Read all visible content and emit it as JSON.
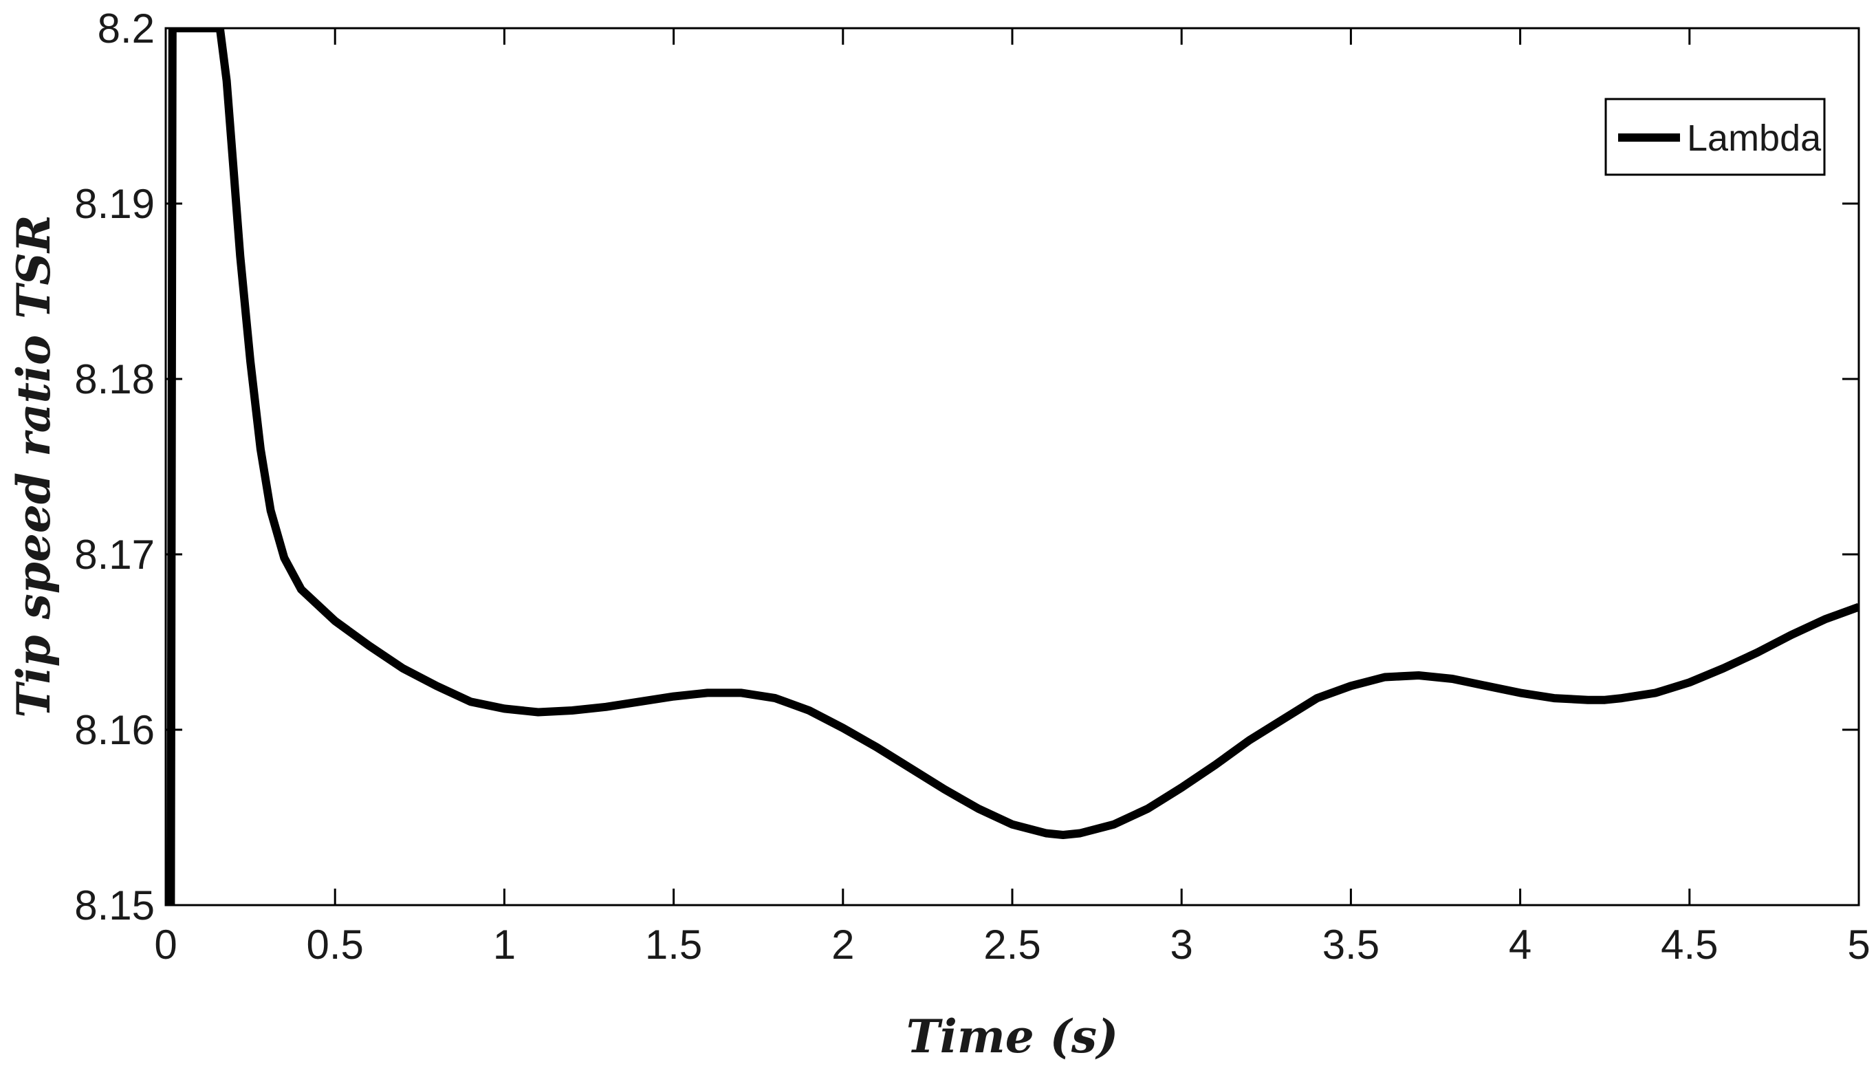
{
  "chart_data": {
    "type": "line",
    "xlabel": "Time (s)",
    "ylabel": "Tip speed ratio TSR",
    "xlim": [
      0,
      5
    ],
    "ylim": [
      8.15,
      8.2
    ],
    "xticks": [
      "0",
      "0.5",
      "1",
      "1.5",
      "2",
      "2.5",
      "3",
      "3.5",
      "4",
      "4.5",
      "5"
    ],
    "yticks": [
      "8.15",
      "8.16",
      "8.17",
      "8.18",
      "8.19",
      "8.2"
    ],
    "grid": false,
    "legend": {
      "placement": "top-right",
      "entries": [
        "Lambda"
      ]
    },
    "series": [
      {
        "name": "Lambda",
        "color": "#000000",
        "x": [
          0,
          0.015,
          0.02,
          0.16,
          0.18,
          0.2,
          0.22,
          0.25,
          0.28,
          0.31,
          0.35,
          0.4,
          0.5,
          0.6,
          0.7,
          0.8,
          0.9,
          1.0,
          1.1,
          1.2,
          1.3,
          1.4,
          1.5,
          1.6,
          1.7,
          1.8,
          1.9,
          2.0,
          2.1,
          2.2,
          2.3,
          2.4,
          2.5,
          2.6,
          2.65,
          2.7,
          2.8,
          2.9,
          3.0,
          3.1,
          3.2,
          3.3,
          3.4,
          3.5,
          3.6,
          3.7,
          3.8,
          3.9,
          4.0,
          4.1,
          4.2,
          4.25,
          4.3,
          4.4,
          4.5,
          4.6,
          4.7,
          4.8,
          4.9,
          5.0
        ],
        "y": [
          8.15,
          8.15,
          8.2,
          8.2,
          8.197,
          8.192,
          8.187,
          8.181,
          8.176,
          8.1725,
          8.1698,
          8.168,
          8.1662,
          8.1648,
          8.1635,
          8.1625,
          8.1616,
          8.1612,
          8.161,
          8.1611,
          8.1613,
          8.1616,
          8.1619,
          8.1621,
          8.1621,
          8.1618,
          8.1611,
          8.1601,
          8.159,
          8.1578,
          8.1566,
          8.1555,
          8.1546,
          8.1541,
          8.154,
          8.1541,
          8.1546,
          8.1555,
          8.1567,
          8.158,
          8.1594,
          8.1606,
          8.1618,
          8.1625,
          8.163,
          8.1631,
          8.1629,
          8.1625,
          8.1621,
          8.1618,
          8.1617,
          8.1617,
          8.1618,
          8.1621,
          8.1627,
          8.1635,
          8.1644,
          8.1654,
          8.1663,
          8.167
        ]
      }
    ]
  }
}
